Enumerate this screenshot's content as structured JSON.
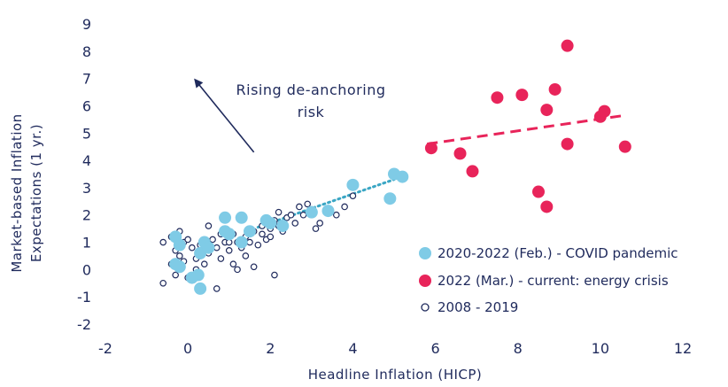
{
  "chart_data": {
    "type": "scatter",
    "title": "",
    "xlabel": "Headline Inflation (HICP)",
    "ylabel_lines": [
      "Market-based Inflation",
      "Expectations (1 yr.)"
    ],
    "xlim": [
      -2,
      12
    ],
    "ylim": [
      -2,
      9
    ],
    "xticks": [
      "-2",
      "0",
      "2",
      "4",
      "6",
      "8",
      "10",
      "12"
    ],
    "yticks": [
      "-2",
      "-1",
      "0",
      "1",
      "2",
      "3",
      "4",
      "5",
      "6",
      "7",
      "8",
      "9"
    ],
    "annotation": {
      "lines": [
        "Rising de-anchoring",
        "risk"
      ],
      "arrow_from": [
        1.6,
        4.3
      ],
      "arrow_to": [
        0.15,
        7.0
      ]
    },
    "legend_position": "bottom-right",
    "series": [
      {
        "name": "2020-2022 (Feb.) - COVID pandemic",
        "color": "#7fcbe6",
        "marker": "filled-circle",
        "points": [
          [
            -0.3,
            1.2
          ],
          [
            -0.2,
            0.9
          ],
          [
            -0.3,
            0.2
          ],
          [
            -0.2,
            0.1
          ],
          [
            0.1,
            -0.3
          ],
          [
            0.3,
            -0.7
          ],
          [
            0.25,
            -0.2
          ],
          [
            0.3,
            0.6
          ],
          [
            0.4,
            1.0
          ],
          [
            0.5,
            0.8
          ],
          [
            0.9,
            1.9
          ],
          [
            0.9,
            1.4
          ],
          [
            1.0,
            1.3
          ],
          [
            1.3,
            1.9
          ],
          [
            1.3,
            1.0
          ],
          [
            1.5,
            1.4
          ],
          [
            1.9,
            1.8
          ],
          [
            2.0,
            1.7
          ],
          [
            2.3,
            1.6
          ],
          [
            3.0,
            2.1
          ],
          [
            3.4,
            2.15
          ],
          [
            4.0,
            3.1
          ],
          [
            4.9,
            2.6
          ],
          [
            5.0,
            3.5
          ],
          [
            5.2,
            3.4
          ]
        ]
      },
      {
        "name": "2022 (Mar.) - current: energy crisis",
        "color": "#e8245a",
        "marker": "filled-circle",
        "trend": [
          [
            5.8,
            4.6
          ],
          [
            10.6,
            5.65
          ]
        ],
        "points": [
          [
            5.9,
            4.45
          ],
          [
            6.6,
            4.25
          ],
          [
            6.9,
            3.6
          ],
          [
            7.5,
            6.3
          ],
          [
            8.1,
            6.4
          ],
          [
            8.5,
            2.85
          ],
          [
            8.7,
            5.85
          ],
          [
            8.7,
            2.3
          ],
          [
            8.9,
            6.6
          ],
          [
            9.2,
            8.2
          ],
          [
            9.2,
            4.6
          ],
          [
            10.0,
            5.6
          ],
          [
            10.1,
            5.8
          ],
          [
            10.6,
            4.5
          ]
        ]
      },
      {
        "name": "2008 - 2019",
        "color": "#1f2a5c",
        "marker": "hollow-circle",
        "trend": [
          [
            1.7,
            1.55
          ],
          [
            5.0,
            3.3
          ]
        ],
        "points": [
          [
            -0.6,
            -0.5
          ],
          [
            -0.6,
            1.0
          ],
          [
            -0.4,
            1.2
          ],
          [
            -0.4,
            0.2
          ],
          [
            -0.3,
            0.7
          ],
          [
            -0.3,
            -0.2
          ],
          [
            -0.2,
            1.4
          ],
          [
            -0.2,
            0.5
          ],
          [
            -0.1,
            1.0
          ],
          [
            -0.1,
            0.3
          ],
          [
            0.0,
            -0.3
          ],
          [
            0.0,
            1.1
          ],
          [
            0.1,
            0.8
          ],
          [
            0.2,
            0.4
          ],
          [
            0.2,
            0.0
          ],
          [
            0.3,
            0.9
          ],
          [
            0.3,
            0.5
          ],
          [
            0.4,
            0.2
          ],
          [
            0.5,
            1.0
          ],
          [
            0.5,
            0.6
          ],
          [
            0.6,
            1.1
          ],
          [
            0.7,
            -0.7
          ],
          [
            0.7,
            0.8
          ],
          [
            0.8,
            1.3
          ],
          [
            0.8,
            0.4
          ],
          [
            0.9,
            1.0
          ],
          [
            1.0,
            0.7
          ],
          [
            1.1,
            1.3
          ],
          [
            1.1,
            0.2
          ],
          [
            1.2,
            0.0
          ],
          [
            1.2,
            1.0
          ],
          [
            1.3,
            0.8
          ],
          [
            1.4,
            1.2
          ],
          [
            1.4,
            0.5
          ],
          [
            1.5,
            1.0
          ],
          [
            1.6,
            1.4
          ],
          [
            1.6,
            0.1
          ],
          [
            1.7,
            0.9
          ],
          [
            1.8,
            1.3
          ],
          [
            1.8,
            1.6
          ],
          [
            1.9,
            1.1
          ],
          [
            2.0,
            1.5
          ],
          [
            2.0,
            1.2
          ],
          [
            2.1,
            1.8
          ],
          [
            2.1,
            -0.2
          ],
          [
            2.2,
            1.6
          ],
          [
            2.3,
            1.4
          ],
          [
            2.4,
            1.9
          ],
          [
            2.5,
            2.0
          ],
          [
            2.6,
            1.7
          ],
          [
            2.7,
            2.3
          ],
          [
            2.8,
            2.0
          ],
          [
            2.9,
            2.4
          ],
          [
            3.0,
            2.2
          ],
          [
            3.1,
            1.5
          ],
          [
            3.2,
            1.7
          ],
          [
            3.6,
            2.0
          ],
          [
            3.8,
            2.3
          ],
          [
            4.0,
            2.7
          ],
          [
            0.5,
            1.6
          ],
          [
            1.0,
            1.0
          ],
          [
            2.2,
            2.1
          ]
        ]
      }
    ]
  }
}
